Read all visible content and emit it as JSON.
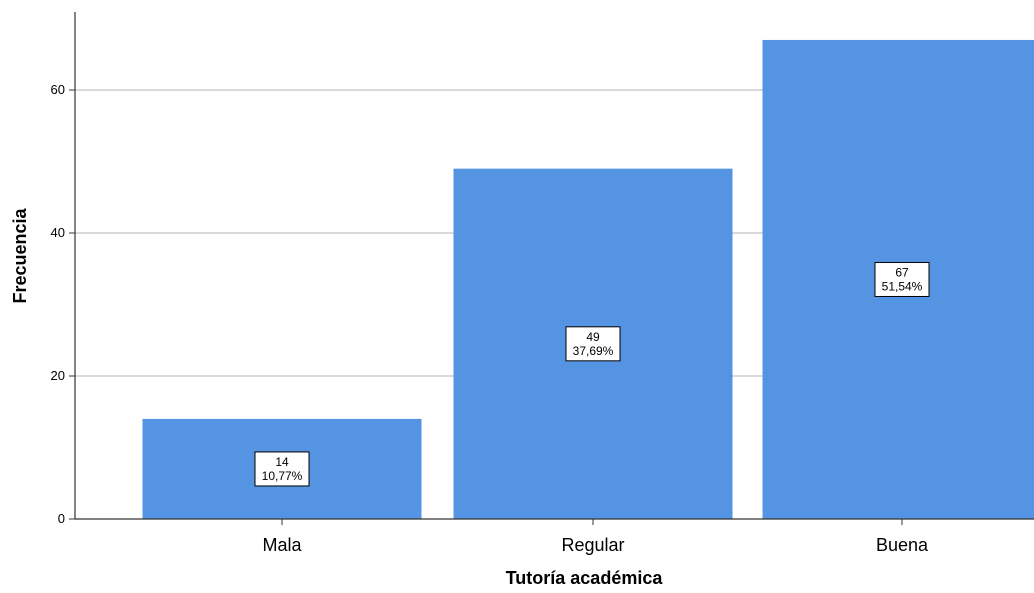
{
  "chart_data": {
    "type": "bar",
    "xlabel": "Tutoría académica",
    "ylabel": "Frecuencia",
    "categories": [
      "Mala",
      "Regular",
      "Buena"
    ],
    "values": [
      14,
      49,
      67
    ],
    "percent_labels": [
      "10,77%",
      "37,69%",
      "51,54%"
    ],
    "ylim": [
      0,
      70
    ],
    "yticks": [
      0,
      20,
      40,
      60
    ],
    "grid": true,
    "legend": "none",
    "bar_color": "#5594e2",
    "gridline_color": "#c4c4c4",
    "axis_color": "#333333"
  }
}
